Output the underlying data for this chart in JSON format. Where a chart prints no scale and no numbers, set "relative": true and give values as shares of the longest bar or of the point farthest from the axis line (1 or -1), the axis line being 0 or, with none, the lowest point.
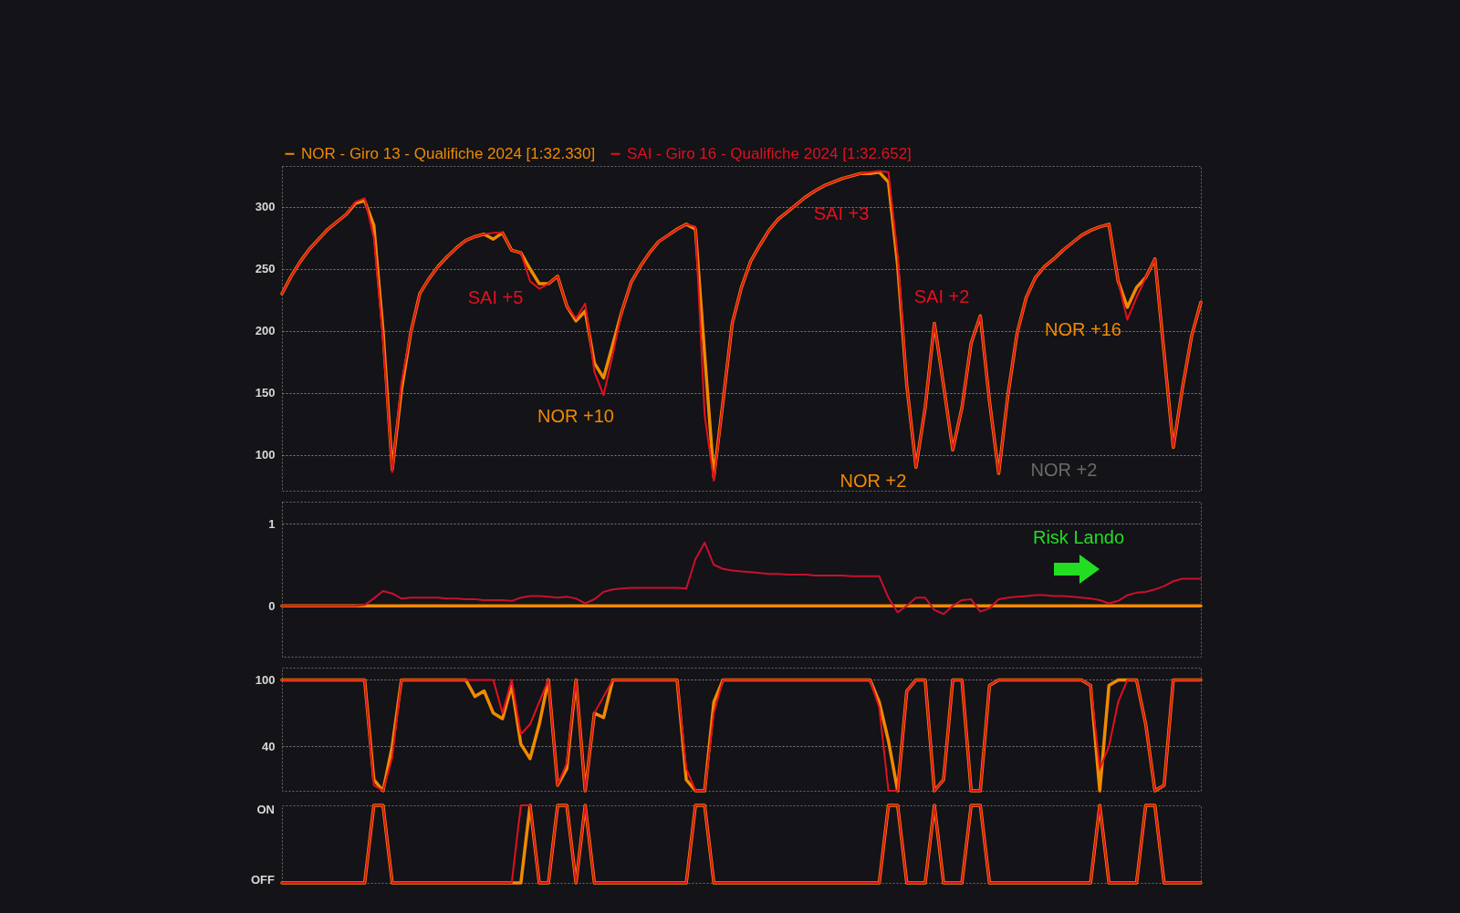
{
  "chart_data": [
    {
      "type": "line",
      "categories": [
        null,
        null,
        null,
        null,
        null,
        null,
        null,
        null,
        null,
        null,
        null,
        null,
        null,
        null,
        null,
        null,
        null,
        null,
        null,
        null,
        null,
        null,
        null,
        null,
        null,
        null,
        null,
        null,
        null,
        null,
        null,
        null,
        null,
        null,
        null,
        null,
        null,
        null,
        null,
        null,
        null,
        null,
        null,
        null,
        null,
        null,
        null,
        null,
        null,
        null,
        null,
        null,
        null,
        null,
        null,
        null,
        null,
        null,
        null,
        null,
        null,
        null,
        null,
        null,
        null,
        null,
        null,
        null,
        null,
        null,
        null,
        null,
        null,
        null,
        null,
        null,
        null,
        null,
        null,
        null,
        null,
        null,
        null,
        null,
        null,
        null,
        null,
        null,
        null,
        null,
        null,
        null,
        null,
        null,
        null,
        null,
        null,
        null,
        null,
        null,
        null
      ],
      "ylim": [
        71,
        333
      ],
      "yticks": [
        100,
        150,
        200,
        250,
        300
      ],
      "grid": "y",
      "tick_labels": "y",
      "legend": "top",
      "line_style": "solid",
      "series": [
        {
          "name": "NOR - Giro 13 - Qualifiche 2024 [1:32.330]",
          "color": "#f08a00",
          "values": [
            230,
            244,
            256,
            266,
            274,
            282,
            288,
            294,
            303,
            305,
            285,
            200,
            88,
            152,
            198,
            230,
            242,
            252,
            260,
            267,
            273,
            276,
            278,
            274,
            279,
            265,
            263,
            250,
            238,
            238,
            244,
            220,
            208,
            216,
            174,
            162,
            189,
            216,
            239,
            252,
            263,
            272,
            277,
            282,
            286,
            282,
            181,
            82,
            143,
            206,
            235,
            256,
            269,
            281,
            290,
            296,
            302,
            308,
            313,
            317,
            320,
            323,
            325,
            327,
            327,
            328,
            320,
            253,
            156,
            90,
            138,
            206,
            156,
            104,
            138,
            190,
            212,
            143,
            85,
            148,
            198,
            227,
            243,
            252,
            258,
            265,
            271,
            277,
            281,
            284,
            286,
            240,
            219,
            235,
            243,
            258,
            182,
            106,
            154,
            196,
            223
          ]
        },
        {
          "name": "SAI - Giro 16 - Qualifiche 2024 [1:32.652]",
          "color": "#e3101e",
          "values": [
            230,
            244,
            256,
            266,
            274,
            282,
            288,
            294,
            304,
            307,
            275,
            193,
            86,
            158,
            198,
            230,
            242,
            252,
            260,
            267,
            273,
            276,
            278,
            279,
            279,
            265,
            263,
            240,
            234,
            238,
            244,
            220,
            210,
            222,
            167,
            148,
            181,
            216,
            239,
            252,
            263,
            272,
            277,
            282,
            286,
            284,
            132,
            79,
            143,
            206,
            235,
            256,
            269,
            281,
            290,
            296,
            302,
            308,
            313,
            317,
            320,
            323,
            325,
            327,
            328,
            329,
            328,
            261,
            156,
            90,
            138,
            206,
            156,
            104,
            138,
            190,
            212,
            143,
            85,
            148,
            198,
            227,
            243,
            252,
            258,
            265,
            271,
            277,
            281,
            284,
            286,
            240,
            209,
            227,
            243,
            258,
            182,
            106,
            154,
            196,
            223
          ]
        }
      ],
      "annotations": [
        "SAI +5",
        "NOR +10",
        "SAI +3",
        "SAI +2",
        "NOR +16",
        "NOR +2",
        "NOR +2"
      ]
    },
    {
      "type": "line",
      "categories": [
        null,
        null,
        null,
        null,
        null,
        null,
        null,
        null,
        null,
        null,
        null,
        null,
        null,
        null,
        null,
        null,
        null,
        null,
        null,
        null,
        null,
        null,
        null,
        null,
        null,
        null,
        null,
        null,
        null,
        null,
        null,
        null,
        null,
        null,
        null,
        null,
        null,
        null,
        null,
        null,
        null,
        null,
        null,
        null,
        null,
        null,
        null,
        null,
        null,
        null,
        null,
        null,
        null,
        null,
        null,
        null,
        null,
        null,
        null,
        null,
        null,
        null,
        null,
        null,
        null,
        null,
        null,
        null,
        null,
        null,
        null,
        null,
        null,
        null,
        null,
        null,
        null,
        null,
        null,
        null,
        null,
        null,
        null,
        null,
        null,
        null,
        null,
        null,
        null,
        null,
        null,
        null,
        null,
        null,
        null,
        null,
        null,
        null,
        null,
        null,
        null
      ],
      "ylim": [
        -0.62,
        1.27
      ],
      "yticks": [
        0,
        1
      ],
      "grid": "y",
      "tick_labels": "y",
      "series": [
        {
          "color": "#f08a00",
          "values": [
            0,
            0,
            0,
            0,
            0,
            0,
            0,
            0,
            0,
            0,
            0,
            0,
            0,
            0,
            0,
            0,
            0,
            0,
            0,
            0,
            0,
            0,
            0,
            0,
            0,
            0,
            0,
            0,
            0,
            0,
            0,
            0,
            0,
            0,
            0,
            0,
            0,
            0,
            0,
            0,
            0,
            0,
            0,
            0,
            0,
            0,
            0,
            0,
            0,
            0,
            0,
            0,
            0,
            0,
            0,
            0,
            0,
            0,
            0,
            0,
            0,
            0,
            0,
            0,
            0,
            0,
            0,
            0,
            0,
            0,
            0,
            0,
            0,
            0,
            0,
            0,
            0,
            0,
            0,
            0,
            0,
            0,
            0,
            0,
            0,
            0,
            0,
            0,
            0,
            0,
            0,
            0,
            0,
            0,
            0,
            0,
            0,
            0,
            0,
            0,
            0
          ]
        },
        {
          "color": "#c8102e",
          "values": [
            0,
            0,
            0,
            0,
            0,
            0,
            0,
            0,
            0,
            0.01,
            0.09,
            0.18,
            0.15,
            0.09,
            0.1,
            0.1,
            0.1,
            0.1,
            0.09,
            0.09,
            0.08,
            0.08,
            0.07,
            0.07,
            0.07,
            0.06,
            0.1,
            0.12,
            0.12,
            0.11,
            0.1,
            0.11,
            0.09,
            0.03,
            0.08,
            0.17,
            0.2,
            0.21,
            0.22,
            0.22,
            0.22,
            0.22,
            0.22,
            0.22,
            0.21,
            0.57,
            0.77,
            0.5,
            0.45,
            0.43,
            0.42,
            0.41,
            0.4,
            0.39,
            0.39,
            0.38,
            0.38,
            0.38,
            0.37,
            0.37,
            0.37,
            0.37,
            0.36,
            0.36,
            0.36,
            0.36,
            0.1,
            -0.08,
            0,
            0.1,
            0.1,
            -0.05,
            -0.1,
            0,
            0.07,
            0.08,
            -0.07,
            -0.03,
            0.08,
            0.1,
            0.11,
            0.12,
            0.13,
            0.13,
            0.12,
            0.12,
            0.11,
            0.1,
            0.09,
            0.07,
            0.03,
            0.06,
            0.13,
            0.16,
            0.17,
            0.2,
            0.24,
            0.3,
            0.33,
            0.33,
            0.33
          ]
        }
      ],
      "annotations": [
        "Risk Lando"
      ]
    },
    {
      "type": "line",
      "categories": [
        null,
        null,
        null,
        null,
        null,
        null,
        null,
        null,
        null,
        null,
        null,
        null,
        null,
        null,
        null,
        null,
        null,
        null,
        null,
        null,
        null,
        null,
        null,
        null,
        null,
        null,
        null,
        null,
        null,
        null,
        null,
        null,
        null,
        null,
        null,
        null,
        null,
        null,
        null,
        null,
        null,
        null,
        null,
        null,
        null,
        null,
        null,
        null,
        null,
        null,
        null,
        null,
        null,
        null,
        null,
        null,
        null,
        null,
        null,
        null,
        null,
        null,
        null,
        null,
        null,
        null,
        null,
        null,
        null,
        null,
        null,
        null,
        null,
        null,
        null,
        null,
        null,
        null,
        null,
        null,
        null,
        null,
        null,
        null,
        null,
        null,
        null,
        null,
        null,
        null,
        null,
        null,
        null,
        null,
        null,
        null,
        null,
        null,
        null,
        null,
        null
      ],
      "ylim": [
        0,
        111
      ],
      "yticks": [
        40,
        100
      ],
      "grid": "y",
      "tick_labels": "y",
      "series": [
        {
          "color": "#f08a00",
          "values": [
            100,
            100,
            100,
            100,
            100,
            100,
            100,
            100,
            100,
            100,
            10,
            0,
            40,
            100,
            100,
            100,
            100,
            100,
            100,
            100,
            100,
            85,
            90,
            70,
            65,
            95,
            42,
            29,
            60,
            100,
            5,
            20,
            100,
            0,
            70,
            66,
            100,
            100,
            100,
            100,
            100,
            100,
            100,
            100,
            10,
            0,
            0,
            80,
            100,
            100,
            100,
            100,
            100,
            100,
            100,
            100,
            100,
            100,
            100,
            100,
            100,
            100,
            100,
            100,
            100,
            80,
            45,
            0,
            90,
            100,
            100,
            0,
            10,
            100,
            100,
            0,
            0,
            95,
            100,
            100,
            100,
            100,
            100,
            100,
            100,
            100,
            100,
            100,
            95,
            0,
            95,
            100,
            100,
            100,
            60,
            0,
            5,
            100,
            100,
            100,
            100
          ]
        },
        {
          "color": "#e3101e",
          "values": [
            100,
            100,
            100,
            100,
            100,
            100,
            100,
            100,
            100,
            100,
            5,
            0,
            30,
            100,
            100,
            100,
            100,
            100,
            100,
            100,
            100,
            100,
            100,
            100,
            70,
            100,
            51,
            60,
            80,
            100,
            5,
            25,
            100,
            0,
            70,
            85,
            100,
            100,
            100,
            100,
            100,
            100,
            100,
            100,
            20,
            0,
            0,
            70,
            100,
            100,
            100,
            100,
            100,
            100,
            100,
            100,
            100,
            100,
            100,
            100,
            100,
            100,
            100,
            100,
            100,
            75,
            0,
            0,
            90,
            100,
            100,
            0,
            10,
            100,
            100,
            0,
            0,
            95,
            100,
            100,
            100,
            100,
            100,
            100,
            100,
            100,
            100,
            100,
            95,
            20,
            40,
            80,
            100,
            100,
            60,
            0,
            5,
            100,
            100,
            100,
            100
          ]
        }
      ]
    },
    {
      "type": "line",
      "categories": [
        null,
        null,
        null,
        null,
        null,
        null,
        null,
        null,
        null,
        null,
        null,
        null,
        null,
        null,
        null,
        null,
        null,
        null,
        null,
        null,
        null,
        null,
        null,
        null,
        null,
        null,
        null,
        null,
        null,
        null,
        null,
        null,
        null,
        null,
        null,
        null,
        null,
        null,
        null,
        null,
        null,
        null,
        null,
        null,
        null,
        null,
        null,
        null,
        null,
        null,
        null,
        null,
        null,
        null,
        null,
        null,
        null,
        null,
        null,
        null,
        null,
        null,
        null,
        null,
        null,
        null,
        null,
        null,
        null,
        null,
        null,
        null,
        null,
        null,
        null,
        null,
        null,
        null,
        null,
        null,
        null,
        null,
        null,
        null,
        null,
        null,
        null,
        null,
        null,
        null,
        null,
        null,
        null,
        null,
        null,
        null,
        null,
        null,
        null,
        null,
        null
      ],
      "relative": true,
      "tick_labels": false,
      "annotations": [
        "ON",
        "OFF"
      ],
      "series": [
        {
          "color": "#f08a00",
          "values": [
            0,
            0,
            0,
            0,
            0,
            0,
            0,
            0,
            0,
            0,
            1,
            1,
            0,
            0,
            0,
            0,
            0,
            0,
            0,
            0,
            0,
            0,
            0,
            0,
            0,
            0,
            0,
            1,
            0,
            0,
            1,
            1,
            0,
            1,
            0,
            0,
            0,
            0,
            0,
            0,
            0,
            0,
            0,
            0,
            0,
            1,
            1,
            0,
            0,
            0,
            0,
            0,
            0,
            0,
            0,
            0,
            0,
            0,
            0,
            0,
            0,
            0,
            0,
            0,
            0,
            0,
            1,
            1,
            0,
            0,
            0,
            1,
            0,
            0,
            0,
            1,
            1,
            0,
            0,
            0,
            0,
            0,
            0,
            0,
            0,
            0,
            0,
            0,
            0,
            1,
            0,
            0,
            0,
            0,
            1,
            1,
            0,
            0,
            0,
            0,
            0
          ]
        },
        {
          "color": "#e3101e",
          "values": [
            0,
            0,
            0,
            0,
            0,
            0,
            0,
            0,
            0,
            0,
            1,
            1,
            0,
            0,
            0,
            0,
            0,
            0,
            0,
            0,
            0,
            0,
            0,
            0,
            0,
            0,
            1,
            1,
            0,
            0,
            1,
            1,
            0,
            1,
            0,
            0,
            0,
            0,
            0,
            0,
            0,
            0,
            0,
            0,
            0,
            1,
            1,
            0,
            0,
            0,
            0,
            0,
            0,
            0,
            0,
            0,
            0,
            0,
            0,
            0,
            0,
            0,
            0,
            0,
            0,
            0,
            1,
            1,
            0,
            0,
            0,
            1,
            0,
            0,
            0,
            1,
            1,
            0,
            0,
            0,
            0,
            0,
            0,
            0,
            0,
            0,
            0,
            0,
            0,
            1,
            0,
            0,
            0,
            0,
            1,
            1,
            0,
            0,
            0,
            0,
            0
          ]
        }
      ]
    }
  ]
}
